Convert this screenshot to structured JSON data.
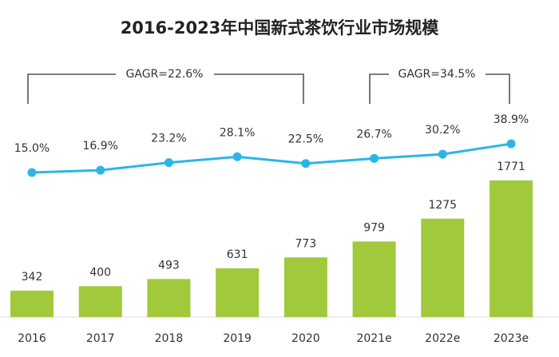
{
  "chart_data": {
    "type": "bar",
    "title": "2016-2023年中国新式茶饮行业市场规模",
    "categories": [
      "2016",
      "2017",
      "2018",
      "2019",
      "2020",
      "2021e",
      "2022e",
      "2023e"
    ],
    "ylim": [
      0,
      1800
    ],
    "y2lim": [
      0,
      50
    ],
    "series": [
      {
        "type": "bar",
        "color": "#a0c93c",
        "values": [
          342,
          400,
          493,
          631,
          773,
          979,
          1275,
          1771
        ]
      },
      {
        "type": "line",
        "axis": "y2",
        "color": "#2bb5e6",
        "values": [
          15.0,
          16.9,
          23.2,
          28.1,
          22.5,
          26.7,
          30.2,
          38.9
        ],
        "value_labels": [
          "15.0%",
          "16.9%",
          "23.2%",
          "28.1%",
          "22.5%",
          "26.7%",
          "30.2%",
          "38.9%"
        ]
      }
    ],
    "annotations": [
      "GAGR=22.6%",
      "GAGR=34.5%"
    ]
  }
}
